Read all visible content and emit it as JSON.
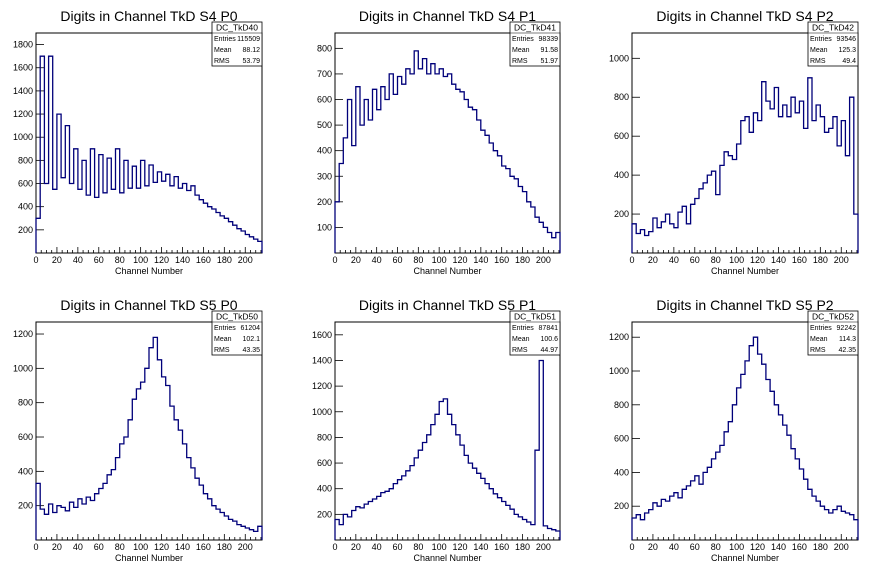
{
  "chart_data": [
    {
      "type": "bar",
      "title": "Digits in Channel TkD S4 P0",
      "xlabel": "Channel Number",
      "ylabel": "",
      "xlim": [
        0,
        216
      ],
      "ylim": [
        0,
        1900
      ],
      "xticks": [
        0,
        20,
        40,
        60,
        80,
        100,
        120,
        140,
        160,
        180,
        200
      ],
      "yticks": [
        200,
        400,
        600,
        800,
        1000,
        1200,
        1400,
        1600,
        1800
      ],
      "stats": {
        "name": "DC_TkD40",
        "entries": "115509",
        "mean": "88.12",
        "rms": "53.79"
      },
      "x": [
        0,
        4,
        8,
        12,
        16,
        20,
        24,
        28,
        32,
        36,
        40,
        44,
        48,
        52,
        56,
        60,
        64,
        68,
        72,
        76,
        80,
        84,
        88,
        92,
        96,
        100,
        104,
        108,
        112,
        116,
        120,
        124,
        128,
        132,
        136,
        140,
        144,
        148,
        152,
        156,
        160,
        164,
        168,
        172,
        176,
        180,
        184,
        188,
        192,
        196,
        200,
        204,
        208,
        212
      ],
      "values": [
        300,
        1700,
        600,
        1700,
        550,
        1200,
        650,
        1100,
        600,
        900,
        550,
        800,
        500,
        900,
        480,
        850,
        520,
        820,
        550,
        900,
        520,
        800,
        560,
        750,
        560,
        800,
        580,
        760,
        610,
        700,
        620,
        680,
        580,
        660,
        560,
        600,
        540,
        580,
        500,
        460,
        430,
        400,
        380,
        350,
        320,
        300,
        270,
        240,
        210,
        190,
        160,
        140,
        120,
        100
      ]
    },
    {
      "type": "bar",
      "title": "Digits in Channel TkD S4 P1",
      "xlabel": "Channel Number",
      "ylabel": "",
      "xlim": [
        0,
        216
      ],
      "ylim": [
        0,
        860
      ],
      "xticks": [
        0,
        20,
        40,
        60,
        80,
        100,
        120,
        140,
        160,
        180,
        200
      ],
      "yticks": [
        100,
        200,
        300,
        400,
        500,
        600,
        700,
        800
      ],
      "stats": {
        "name": "DC_TkD41",
        "entries": "98339",
        "mean": "91.58",
        "rms": "51.97"
      },
      "x": [
        0,
        4,
        8,
        12,
        16,
        20,
        24,
        28,
        32,
        36,
        40,
        44,
        48,
        52,
        56,
        60,
        64,
        68,
        72,
        76,
        80,
        84,
        88,
        92,
        96,
        100,
        104,
        108,
        112,
        116,
        120,
        124,
        128,
        132,
        136,
        140,
        144,
        148,
        152,
        156,
        160,
        164,
        168,
        172,
        176,
        180,
        184,
        188,
        192,
        196,
        200,
        204,
        208,
        212
      ],
      "values": [
        200,
        350,
        450,
        600,
        420,
        650,
        500,
        600,
        520,
        640,
        560,
        650,
        600,
        700,
        620,
        690,
        660,
        720,
        700,
        790,
        720,
        760,
        700,
        740,
        700,
        720,
        690,
        700,
        660,
        640,
        630,
        600,
        570,
        560,
        520,
        480,
        460,
        430,
        400,
        380,
        340,
        330,
        300,
        290,
        260,
        240,
        200,
        180,
        140,
        120,
        100,
        80,
        60,
        80
      ]
    },
    {
      "type": "bar",
      "title": "Digits in Channel TkD S4 P2",
      "xlabel": "Channel Number",
      "ylabel": "",
      "xlim": [
        0,
        216
      ],
      "ylim": [
        0,
        1130
      ],
      "xticks": [
        0,
        20,
        40,
        60,
        80,
        100,
        120,
        140,
        160,
        180,
        200
      ],
      "yticks": [
        200,
        400,
        600,
        800,
        1000
      ],
      "stats": {
        "name": "DC_TkD42",
        "entries": "93546",
        "mean": "125.3",
        "rms": "49.4"
      },
      "x": [
        0,
        4,
        8,
        12,
        16,
        20,
        24,
        28,
        32,
        36,
        40,
        44,
        48,
        52,
        56,
        60,
        64,
        68,
        72,
        76,
        80,
        84,
        88,
        92,
        96,
        100,
        104,
        108,
        112,
        116,
        120,
        124,
        128,
        132,
        136,
        140,
        144,
        148,
        152,
        156,
        160,
        164,
        168,
        172,
        176,
        180,
        184,
        188,
        192,
        196,
        200,
        204,
        208,
        212
      ],
      "values": [
        150,
        100,
        120,
        90,
        110,
        180,
        130,
        160,
        200,
        150,
        130,
        210,
        240,
        150,
        250,
        280,
        330,
        360,
        400,
        420,
        300,
        450,
        520,
        500,
        480,
        560,
        680,
        700,
        620,
        720,
        680,
        880,
        780,
        740,
        850,
        700,
        760,
        700,
        800,
        720,
        780,
        640,
        900,
        680,
        760,
        700,
        620,
        640,
        700,
        550,
        680,
        500,
        800,
        200
      ]
    },
    {
      "type": "bar",
      "title": "Digits in Channel TkD S5 P0",
      "xlabel": "Channel Number",
      "ylabel": "",
      "xlim": [
        0,
        216
      ],
      "ylim": [
        0,
        1270
      ],
      "xticks": [
        0,
        20,
        40,
        60,
        80,
        100,
        120,
        140,
        160,
        180,
        200
      ],
      "yticks": [
        200,
        400,
        600,
        800,
        1000,
        1200
      ],
      "stats": {
        "name": "DC_TkD50",
        "entries": "61204",
        "mean": "102.1",
        "rms": "43.35"
      },
      "x": [
        0,
        4,
        8,
        12,
        16,
        20,
        24,
        28,
        32,
        36,
        40,
        44,
        48,
        52,
        56,
        60,
        64,
        68,
        72,
        76,
        80,
        84,
        88,
        92,
        96,
        100,
        104,
        108,
        112,
        116,
        120,
        124,
        128,
        132,
        136,
        140,
        144,
        148,
        152,
        156,
        160,
        164,
        168,
        172,
        176,
        180,
        184,
        188,
        192,
        196,
        200,
        204,
        208,
        212
      ],
      "values": [
        330,
        180,
        150,
        210,
        160,
        200,
        190,
        170,
        220,
        190,
        240,
        210,
        250,
        230,
        270,
        300,
        330,
        380,
        410,
        480,
        560,
        600,
        700,
        820,
        880,
        920,
        1000,
        1120,
        1180,
        1050,
        950,
        900,
        780,
        700,
        640,
        560,
        480,
        420,
        360,
        320,
        270,
        240,
        200,
        180,
        160,
        140,
        120,
        110,
        90,
        80,
        70,
        60,
        50,
        80
      ]
    },
    {
      "type": "bar",
      "title": "Digits in Channel TkD S5 P1",
      "xlabel": "Channel Number",
      "ylabel": "",
      "xlim": [
        0,
        216
      ],
      "ylim": [
        0,
        1700
      ],
      "xticks": [
        0,
        20,
        40,
        60,
        80,
        100,
        120,
        140,
        160,
        180,
        200
      ],
      "yticks": [
        200,
        400,
        600,
        800,
        1000,
        1200,
        1400,
        1600
      ],
      "stats": {
        "name": "DC_TkD51",
        "entries": "87841",
        "mean": "100.6",
        "rms": "44.97"
      },
      "x": [
        0,
        4,
        8,
        12,
        16,
        20,
        24,
        28,
        32,
        36,
        40,
        44,
        48,
        52,
        56,
        60,
        64,
        68,
        72,
        76,
        80,
        84,
        88,
        92,
        96,
        100,
        104,
        108,
        112,
        116,
        120,
        124,
        128,
        132,
        136,
        140,
        144,
        148,
        152,
        156,
        160,
        164,
        168,
        172,
        176,
        180,
        184,
        188,
        192,
        196,
        200,
        204,
        208,
        212
      ],
      "values": [
        160,
        120,
        200,
        180,
        230,
        260,
        250,
        280,
        300,
        320,
        340,
        370,
        380,
        400,
        440,
        470,
        500,
        540,
        580,
        640,
        700,
        760,
        820,
        900,
        980,
        1080,
        1100,
        980,
        900,
        820,
        740,
        660,
        600,
        560,
        520,
        480,
        440,
        400,
        360,
        330,
        300,
        270,
        240,
        200,
        180,
        160,
        140,
        120,
        700,
        1400,
        110,
        90,
        80,
        70
      ]
    },
    {
      "type": "bar",
      "title": "Digits in Channel TkD S5 P2",
      "xlabel": "Channel Number",
      "ylabel": "",
      "xlim": [
        0,
        216
      ],
      "ylim": [
        0,
        1290
      ],
      "xticks": [
        0,
        20,
        40,
        60,
        80,
        100,
        120,
        140,
        160,
        180,
        200
      ],
      "yticks": [
        200,
        400,
        600,
        800,
        1000,
        1200
      ],
      "stats": {
        "name": "DC_TkD52",
        "entries": "92242",
        "mean": "114.3",
        "rms": "42.35"
      },
      "x": [
        0,
        4,
        8,
        12,
        16,
        20,
        24,
        28,
        32,
        36,
        40,
        44,
        48,
        52,
        56,
        60,
        64,
        68,
        72,
        76,
        80,
        84,
        88,
        92,
        96,
        100,
        104,
        108,
        112,
        116,
        120,
        124,
        128,
        132,
        136,
        140,
        144,
        148,
        152,
        156,
        160,
        164,
        168,
        172,
        176,
        180,
        184,
        188,
        192,
        196,
        200,
        204,
        208,
        212
      ],
      "values": [
        130,
        150,
        120,
        160,
        180,
        220,
        200,
        240,
        230,
        260,
        280,
        250,
        300,
        320,
        350,
        380,
        330,
        400,
        430,
        480,
        520,
        560,
        640,
        700,
        800,
        900,
        980,
        1060,
        1150,
        1200,
        1100,
        1040,
        950,
        880,
        800,
        740,
        680,
        620,
        540,
        480,
        420,
        360,
        300,
        260,
        230,
        200,
        180,
        160,
        180,
        200,
        170,
        160,
        150,
        120
      ]
    }
  ]
}
